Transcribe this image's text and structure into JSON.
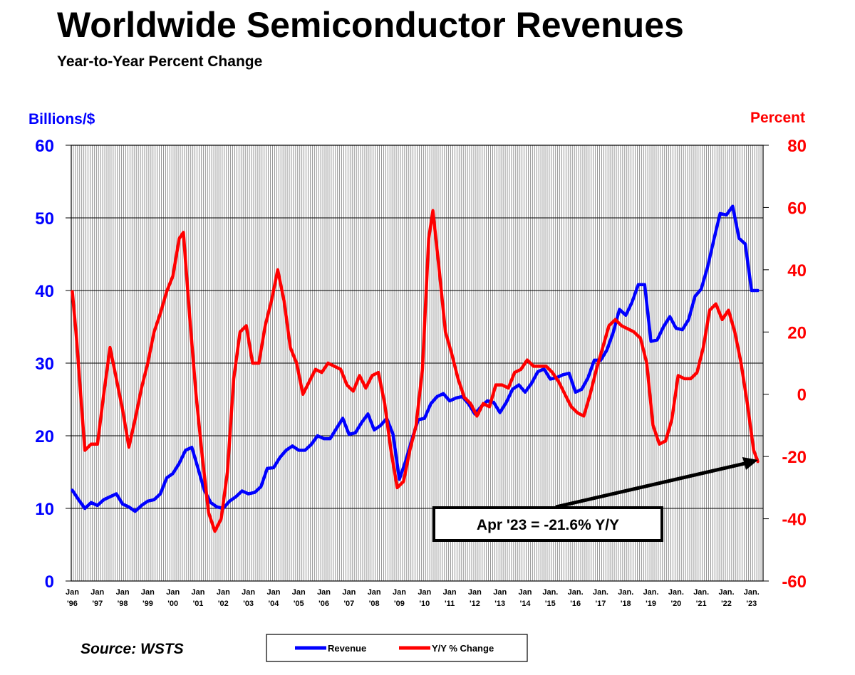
{
  "chart_data": {
    "type": "line",
    "title": "Worldwide Semiconductor Revenues",
    "subtitle": "Year-to-Year Percent Change",
    "ylabel_left": "Billions/$",
    "ylabel_right": "Percent",
    "ylim_left": [
      0,
      60
    ],
    "ylim_right": [
      -60,
      80
    ],
    "yticks_left": [
      "0",
      "10",
      "20",
      "30",
      "40",
      "50",
      "60"
    ],
    "yticks_right": [
      "-60",
      "-40",
      "-20",
      "0",
      "20",
      "40",
      "60",
      "80"
    ],
    "x_start": "Jan 1996",
    "x_end": "Apr 2023",
    "xtick_labels": [
      [
        "Jan",
        "'96"
      ],
      [
        "Jan",
        "'97"
      ],
      [
        "Jan",
        "'98"
      ],
      [
        "Jan",
        "'99"
      ],
      [
        "Jan",
        "'00"
      ],
      [
        "Jan",
        "'01"
      ],
      [
        "Jan",
        "'02"
      ],
      [
        "Jan",
        "'03"
      ],
      [
        "Jan",
        "'04"
      ],
      [
        "Jan",
        "'05"
      ],
      [
        "Jan",
        "'06"
      ],
      [
        "Jan",
        "'07"
      ],
      [
        "Jan",
        "'08"
      ],
      [
        "Jan",
        "'09"
      ],
      [
        "Jan",
        "'10"
      ],
      [
        "Jan",
        "'11"
      ],
      [
        "Jan",
        "'12"
      ],
      [
        "Jan",
        "'13"
      ],
      [
        "Jan",
        "'14"
      ],
      [
        "Jan.",
        "'15"
      ],
      [
        "Jan.",
        "'16"
      ],
      [
        "Jan.",
        "'17"
      ],
      [
        "Jan.",
        "'18"
      ],
      [
        "Jan.",
        "'19"
      ],
      [
        "Jan.",
        "'20"
      ],
      [
        "Jan.",
        "'21"
      ],
      [
        "Jan.",
        "'22"
      ],
      [
        "Jan.",
        "'23"
      ]
    ],
    "grid": "vertical monthly lines, horizontal at left-axis ticks",
    "legend_placement": "bottom-center",
    "annotation": "Apr '23 = -21.6% Y/Y",
    "source": "Source: WSTS",
    "series": [
      {
        "name": "Revenue",
        "axis": "left",
        "color": "#0000ff",
        "points": [
          [
            "1996-01",
            12.5
          ],
          [
            "1996-04",
            11.2
          ],
          [
            "1996-07",
            10.0
          ],
          [
            "1996-10",
            10.8
          ],
          [
            "1997-01",
            10.4
          ],
          [
            "1997-04",
            11.2
          ],
          [
            "1997-07",
            11.6
          ],
          [
            "1997-10",
            12.0
          ],
          [
            "1998-01",
            10.6
          ],
          [
            "1998-04",
            10.2
          ],
          [
            "1998-07",
            9.6
          ],
          [
            "1998-10",
            10.4
          ],
          [
            "1999-01",
            11.0
          ],
          [
            "1999-04",
            11.2
          ],
          [
            "1999-07",
            12.0
          ],
          [
            "1999-10",
            14.2
          ],
          [
            "2000-01",
            14.8
          ],
          [
            "2000-04",
            16.2
          ],
          [
            "2000-07",
            18.0
          ],
          [
            "2000-10",
            18.4
          ],
          [
            "2001-01",
            15.5
          ],
          [
            "2001-04",
            12.5
          ],
          [
            "2001-07",
            10.8
          ],
          [
            "2001-10",
            10.2
          ],
          [
            "2002-01",
            10.0
          ],
          [
            "2002-04",
            11.0
          ],
          [
            "2002-07",
            11.6
          ],
          [
            "2002-10",
            12.4
          ],
          [
            "2003-01",
            12.0
          ],
          [
            "2003-04",
            12.2
          ],
          [
            "2003-07",
            13.0
          ],
          [
            "2003-10",
            15.5
          ],
          [
            "2004-01",
            15.6
          ],
          [
            "2004-04",
            17.0
          ],
          [
            "2004-07",
            18.0
          ],
          [
            "2004-10",
            18.6
          ],
          [
            "2005-01",
            18.0
          ],
          [
            "2005-04",
            18.0
          ],
          [
            "2005-07",
            18.8
          ],
          [
            "2005-10",
            20.0
          ],
          [
            "2006-01",
            19.6
          ],
          [
            "2006-04",
            19.6
          ],
          [
            "2006-07",
            21.0
          ],
          [
            "2006-10",
            22.4
          ],
          [
            "2007-01",
            20.2
          ],
          [
            "2007-04",
            20.4
          ],
          [
            "2007-07",
            21.8
          ],
          [
            "2007-10",
            23.0
          ],
          [
            "2008-01",
            20.8
          ],
          [
            "2008-04",
            21.4
          ],
          [
            "2008-07",
            22.4
          ],
          [
            "2008-10",
            20.2
          ],
          [
            "2009-01",
            14.0
          ],
          [
            "2009-04",
            16.5
          ],
          [
            "2009-07",
            19.5
          ],
          [
            "2009-10",
            22.2
          ],
          [
            "2010-01",
            22.4
          ],
          [
            "2010-04",
            24.4
          ],
          [
            "2010-07",
            25.4
          ],
          [
            "2010-10",
            25.8
          ],
          [
            "2011-01",
            24.8
          ],
          [
            "2011-04",
            25.2
          ],
          [
            "2011-07",
            25.4
          ],
          [
            "2011-10",
            24.4
          ],
          [
            "2012-01",
            23.0
          ],
          [
            "2012-04",
            24.0
          ],
          [
            "2012-07",
            24.8
          ],
          [
            "2012-10",
            24.6
          ],
          [
            "2013-01",
            23.2
          ],
          [
            "2013-04",
            24.6
          ],
          [
            "2013-07",
            26.4
          ],
          [
            "2013-10",
            27.0
          ],
          [
            "2014-01",
            26.0
          ],
          [
            "2014-04",
            27.2
          ],
          [
            "2014-07",
            28.8
          ],
          [
            "2014-10",
            29.2
          ],
          [
            "2015-01",
            27.8
          ],
          [
            "2015-04",
            28.0
          ],
          [
            "2015-07",
            28.4
          ],
          [
            "2015-10",
            28.6
          ],
          [
            "2016-01",
            26.0
          ],
          [
            "2016-04",
            26.4
          ],
          [
            "2016-07",
            28.0
          ],
          [
            "2016-10",
            30.4
          ],
          [
            "2017-01",
            30.4
          ],
          [
            "2017-04",
            31.8
          ],
          [
            "2017-07",
            34.2
          ],
          [
            "2017-10",
            37.4
          ],
          [
            "2018-01",
            36.6
          ],
          [
            "2018-04",
            38.4
          ],
          [
            "2018-07",
            40.8
          ],
          [
            "2018-10",
            40.8
          ],
          [
            "2019-01",
            33.0
          ],
          [
            "2019-04",
            33.2
          ],
          [
            "2019-07",
            35.0
          ],
          [
            "2019-10",
            36.4
          ],
          [
            "2020-01",
            34.8
          ],
          [
            "2020-04",
            34.6
          ],
          [
            "2020-07",
            36.0
          ],
          [
            "2020-10",
            39.2
          ],
          [
            "2021-01",
            40.2
          ],
          [
            "2021-04",
            43.2
          ],
          [
            "2021-07",
            47.0
          ],
          [
            "2021-10",
            50.6
          ],
          [
            "2022-01",
            50.4
          ],
          [
            "2022-04",
            51.6
          ],
          [
            "2022-07",
            47.2
          ],
          [
            "2022-10",
            46.4
          ],
          [
            "2023-01",
            40.0
          ],
          [
            "2023-04",
            40.0
          ]
        ]
      },
      {
        "name": "Y/Y % Change",
        "axis": "right",
        "color": "#ff0000",
        "points": [
          [
            "1996-01",
            33
          ],
          [
            "1996-03",
            18
          ],
          [
            "1996-05",
            0
          ],
          [
            "1996-07",
            -18
          ],
          [
            "1996-10",
            -16
          ],
          [
            "1997-01",
            -16
          ],
          [
            "1997-04",
            0
          ],
          [
            "1997-07",
            15
          ],
          [
            "1997-10",
            5
          ],
          [
            "1998-01",
            -5
          ],
          [
            "1998-04",
            -17
          ],
          [
            "1998-07",
            -8
          ],
          [
            "1998-10",
            2
          ],
          [
            "1999-01",
            10
          ],
          [
            "1999-04",
            20
          ],
          [
            "1999-07",
            26
          ],
          [
            "1999-10",
            33
          ],
          [
            "2000-01",
            38
          ],
          [
            "2000-04",
            50
          ],
          [
            "2000-06",
            52
          ],
          [
            "2000-09",
            25
          ],
          [
            "2000-12",
            0
          ],
          [
            "2001-03",
            -20
          ],
          [
            "2001-06",
            -38
          ],
          [
            "2001-09",
            -44
          ],
          [
            "2001-12",
            -40
          ],
          [
            "2002-03",
            -25
          ],
          [
            "2002-06",
            5
          ],
          [
            "2002-09",
            20
          ],
          [
            "2002-12",
            22
          ],
          [
            "2003-03",
            10
          ],
          [
            "2003-06",
            10
          ],
          [
            "2003-09",
            22
          ],
          [
            "2003-12",
            30
          ],
          [
            "2004-03",
            40
          ],
          [
            "2004-06",
            30
          ],
          [
            "2004-09",
            15
          ],
          [
            "2004-12",
            10
          ],
          [
            "2005-03",
            0
          ],
          [
            "2005-06",
            4
          ],
          [
            "2005-09",
            8
          ],
          [
            "2005-12",
            7
          ],
          [
            "2006-03",
            10
          ],
          [
            "2006-06",
            9
          ],
          [
            "2006-09",
            8
          ],
          [
            "2006-12",
            3
          ],
          [
            "2007-03",
            1
          ],
          [
            "2007-06",
            6
          ],
          [
            "2007-09",
            2
          ],
          [
            "2007-12",
            6
          ],
          [
            "2008-03",
            7
          ],
          [
            "2008-06",
            -3
          ],
          [
            "2008-09",
            -18
          ],
          [
            "2008-12",
            -30
          ],
          [
            "2009-03",
            -28
          ],
          [
            "2009-06",
            -18
          ],
          [
            "2009-09",
            -10
          ],
          [
            "2009-12",
            8
          ],
          [
            "2010-03",
            50
          ],
          [
            "2010-05",
            59
          ],
          [
            "2010-08",
            40
          ],
          [
            "2010-11",
            20
          ],
          [
            "2011-02",
            13
          ],
          [
            "2011-05",
            5
          ],
          [
            "2011-08",
            -1
          ],
          [
            "2011-11",
            -3
          ],
          [
            "2012-02",
            -7
          ],
          [
            "2012-05",
            -3
          ],
          [
            "2012-08",
            -4
          ],
          [
            "2012-11",
            3
          ],
          [
            "2013-02",
            3
          ],
          [
            "2013-05",
            2
          ],
          [
            "2013-08",
            7
          ],
          [
            "2013-11",
            8
          ],
          [
            "2014-02",
            11
          ],
          [
            "2014-05",
            9
          ],
          [
            "2014-08",
            9
          ],
          [
            "2014-11",
            9
          ],
          [
            "2015-02",
            7
          ],
          [
            "2015-05",
            4
          ],
          [
            "2015-08",
            0
          ],
          [
            "2015-11",
            -4
          ],
          [
            "2016-02",
            -6
          ],
          [
            "2016-05",
            -7
          ],
          [
            "2016-08",
            0
          ],
          [
            "2016-11",
            8
          ],
          [
            "2017-02",
            15
          ],
          [
            "2017-05",
            22
          ],
          [
            "2017-08",
            24
          ],
          [
            "2017-11",
            22
          ],
          [
            "2018-02",
            21
          ],
          [
            "2018-05",
            20
          ],
          [
            "2018-08",
            18
          ],
          [
            "2018-11",
            10
          ],
          [
            "2019-02",
            -10
          ],
          [
            "2019-05",
            -16
          ],
          [
            "2019-08",
            -15
          ],
          [
            "2019-11",
            -8
          ],
          [
            "2020-02",
            6
          ],
          [
            "2020-05",
            5
          ],
          [
            "2020-08",
            5
          ],
          [
            "2020-11",
            7
          ],
          [
            "2021-02",
            15
          ],
          [
            "2021-05",
            27
          ],
          [
            "2021-08",
            29
          ],
          [
            "2021-11",
            24
          ],
          [
            "2022-02",
            27
          ],
          [
            "2022-05",
            20
          ],
          [
            "2022-08",
            10
          ],
          [
            "2022-11",
            -3
          ],
          [
            "2023-02",
            -18
          ],
          [
            "2023-04",
            -21.6
          ]
        ]
      }
    ]
  }
}
